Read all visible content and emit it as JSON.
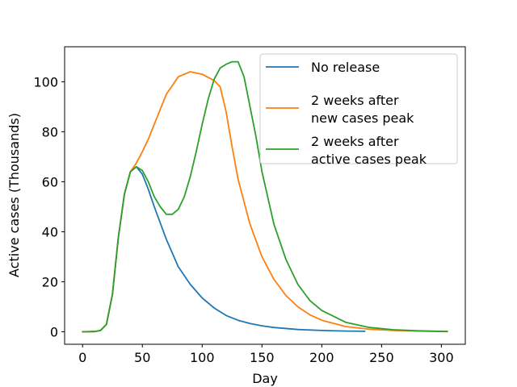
{
  "chart_data": {
    "type": "line",
    "title": "",
    "xlabel": "Day",
    "ylabel": "Active cases (Thousands)",
    "xlim": [
      -15,
      320
    ],
    "ylim": [
      -5,
      114
    ],
    "xticks": [
      0,
      50,
      100,
      150,
      200,
      250,
      300
    ],
    "yticks": [
      0,
      20,
      40,
      60,
      80,
      100
    ],
    "grid": false,
    "legend_position": "top-right",
    "series": [
      {
        "name": "No release",
        "color": "#1f77b4",
        "x": [
          0,
          10,
          15,
          20,
          25,
          30,
          35,
          40,
          45,
          50,
          55,
          60,
          70,
          80,
          90,
          100,
          110,
          120,
          130,
          140,
          150,
          160,
          180,
          200,
          220,
          236
        ],
        "y": [
          0,
          0.1,
          0.5,
          3,
          15,
          38,
          55,
          64,
          66,
          63,
          57,
          50,
          37,
          26,
          19,
          13.5,
          9.5,
          6.5,
          4.6,
          3.3,
          2.4,
          1.7,
          0.9,
          0.5,
          0.3,
          0.2
        ]
      },
      {
        "name": "2 weeks after\nnew cases peak",
        "color": "#ff7f0e",
        "x": [
          0,
          10,
          15,
          20,
          25,
          30,
          35,
          40,
          45,
          50,
          55,
          60,
          70,
          80,
          90,
          100,
          110,
          115,
          120,
          125,
          130,
          140,
          150,
          160,
          170,
          180,
          190,
          200,
          220,
          240,
          260,
          280,
          305
        ],
        "y": [
          0,
          0.1,
          0.5,
          3,
          15,
          38,
          55,
          64,
          67.5,
          72,
          77,
          83,
          95,
          102,
          104,
          103,
          100.5,
          98,
          88,
          74,
          61,
          43,
          30,
          21,
          14.5,
          10,
          6.8,
          4.6,
          2.1,
          1.0,
          0.5,
          0.3,
          0.1
        ]
      },
      {
        "name": "2 weeks after\nactive cases peak",
        "color": "#2ca02c",
        "x": [
          0,
          10,
          15,
          20,
          25,
          30,
          35,
          40,
          45,
          50,
          55,
          60,
          65,
          70,
          75,
          80,
          85,
          90,
          95,
          100,
          105,
          110,
          115,
          120,
          125,
          130,
          135,
          140,
          145,
          150,
          160,
          170,
          180,
          190,
          200,
          220,
          240,
          260,
          280,
          305
        ],
        "y": [
          0,
          0.1,
          0.5,
          3,
          15,
          38,
          55,
          64,
          66,
          64.5,
          60,
          54,
          50,
          47,
          47,
          49,
          54,
          62,
          72,
          83,
          93,
          101,
          105.5,
          107,
          108,
          108,
          102,
          90,
          78,
          64,
          43,
          29,
          19,
          12.5,
          8.5,
          3.8,
          1.7,
          0.8,
          0.4,
          0.1
        ]
      }
    ]
  }
}
